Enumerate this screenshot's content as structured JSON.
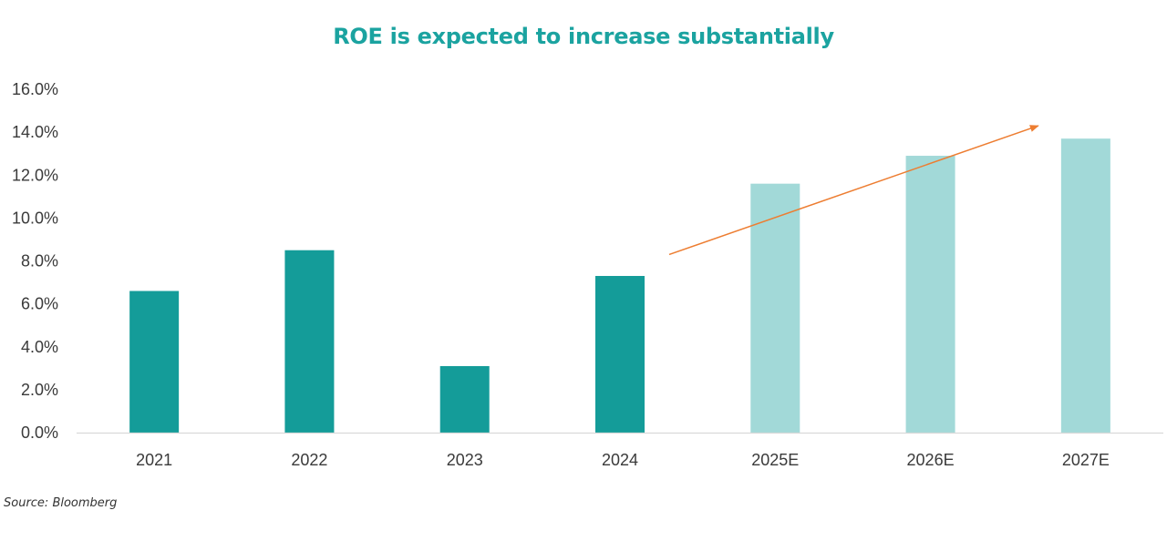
{
  "chart_data": {
    "type": "bar",
    "title": "ROE is expected to increase substantially",
    "xlabel": "",
    "ylabel": "",
    "categories": [
      "2021",
      "2022",
      "2023",
      "2024",
      "2025E",
      "2026E",
      "2027E"
    ],
    "values": [
      6.6,
      8.5,
      3.1,
      7.3,
      11.6,
      12.9,
      13.7
    ],
    "estimate_flags": [
      false,
      false,
      false,
      false,
      true,
      true,
      true
    ],
    "ylim": [
      0,
      16
    ],
    "yticks": [
      0,
      2,
      4,
      6,
      8,
      10,
      12,
      14,
      16
    ],
    "ytick_labels": [
      "0.0%",
      "2.0%",
      "4.0%",
      "6.0%",
      "8.0%",
      "10.0%",
      "12.0%",
      "14.0%",
      "16.0%"
    ],
    "grid": false,
    "legend": "none",
    "annotations": [
      {
        "type": "trend-arrow",
        "from_category": "2024",
        "to_category": "2027E",
        "from_y": 8.3,
        "to_y": 14.3
      }
    ],
    "colors": {
      "actual": "#149c99",
      "estimate": "#a2d9d8",
      "arrow": "#ed7d31",
      "title": "#1ba3a0"
    }
  },
  "source": "Source: Bloomberg"
}
